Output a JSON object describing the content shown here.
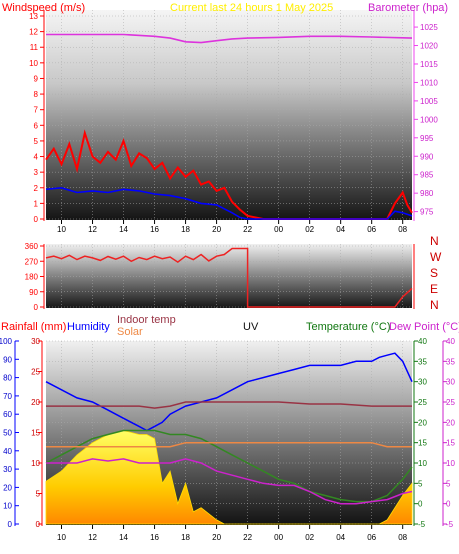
{
  "chart_data": [
    {
      "type": "line",
      "title": "Current last 24 hours 1 May 2025",
      "left_axis_label": "Windspeed (m/s)",
      "right_axis_label": "Barometer (hpa)",
      "x_ticks": [
        "10",
        "12",
        "14",
        "16",
        "18",
        "20",
        "22",
        "00",
        "02",
        "04",
        "06",
        "08"
      ],
      "left_ylim": [
        0,
        13
      ],
      "left_ticks": [
        "0",
        "1",
        "2",
        "3",
        "4",
        "5",
        "6",
        "7",
        "8",
        "9",
        "10",
        "11",
        "12",
        "13"
      ],
      "right_ylim": [
        973,
        1028
      ],
      "right_ticks": [
        "975",
        "980",
        "985",
        "990",
        "995",
        "1000",
        "1005",
        "1010",
        "1015",
        "1020",
        "1025"
      ],
      "series": [
        {
          "color": "#ff0000",
          "axis": "left",
          "x": [
            9.0,
            9.5,
            10.0,
            10.5,
            11.0,
            11.5,
            12.0,
            12.5,
            13.0,
            13.5,
            14.0,
            14.5,
            15.0,
            15.5,
            16.0,
            16.5,
            17.0,
            17.5,
            18.0,
            18.5,
            19.0,
            19.5,
            20.0,
            20.5,
            21.0,
            21.5,
            22.0,
            23.0,
            24.0,
            26.0,
            28.0,
            30.0,
            31.0,
            31.5,
            32.0,
            32.3,
            32.6
          ],
          "values": [
            3.8,
            4.5,
            3.5,
            4.8,
            3.2,
            5.5,
            4.0,
            3.6,
            4.3,
            3.8,
            5.0,
            3.4,
            4.2,
            3.9,
            3.2,
            3.6,
            2.6,
            3.3,
            2.7,
            3.1,
            2.2,
            2.4,
            1.8,
            2.0,
            1.1,
            0.6,
            0.2,
            0.0,
            0.0,
            0.0,
            0.0,
            0.0,
            0.0,
            1.0,
            1.7,
            0.9,
            0.4
          ]
        },
        {
          "color": "#0000ff",
          "axis": "left",
          "x": [
            9.0,
            10.0,
            11.0,
            12.0,
            13.0,
            14.0,
            15.0,
            16.0,
            17.0,
            18.0,
            19.0,
            20.0,
            21.0,
            21.5,
            22.0,
            24.0,
            26.0,
            28.0,
            30.0,
            31.0,
            31.5,
            32.0,
            32.6
          ],
          "values": [
            1.9,
            2.0,
            1.7,
            1.8,
            1.7,
            1.9,
            1.8,
            1.6,
            1.5,
            1.3,
            1.0,
            0.9,
            0.4,
            0.1,
            0.0,
            0.0,
            0.0,
            0.0,
            0.0,
            0.0,
            0.5,
            0.4,
            0.2
          ]
        },
        {
          "color": "#dd33dd",
          "axis": "right",
          "x": [
            9.0,
            10.0,
            12.0,
            14.0,
            16.0,
            17.0,
            18.0,
            19.0,
            20.0,
            21.0,
            22.0,
            24.0,
            26.0,
            28.0,
            30.0,
            32.0,
            32.6
          ],
          "values": [
            1023,
            1023,
            1023,
            1023,
            1022.5,
            1022,
            1021,
            1020.8,
            1021.3,
            1021.8,
            1022,
            1022.2,
            1022.5,
            1022.5,
            1022.3,
            1022.1,
            1022
          ]
        }
      ]
    },
    {
      "type": "line",
      "left_ylim": [
        0,
        360
      ],
      "left_ticks": [
        "0",
        "90",
        "180",
        "270",
        "360"
      ],
      "right_ticks": [
        "N",
        "E",
        "S",
        "W",
        "N"
      ],
      "series": [
        {
          "color": "#ee2222",
          "axis": "left",
          "x": [
            9.0,
            9.5,
            10.0,
            10.5,
            11.0,
            11.5,
            12.0,
            12.5,
            13.0,
            13.5,
            14.0,
            14.5,
            15.0,
            15.5,
            16.0,
            16.5,
            17.0,
            17.5,
            18.0,
            18.5,
            19.0,
            19.5,
            20.0,
            20.5,
            21.0,
            21.5,
            22.0,
            22.0,
            24.0,
            26.0,
            28.0,
            30.0,
            31.5,
            32.0,
            32.6
          ],
          "values": [
            290,
            300,
            285,
            305,
            280,
            300,
            290,
            275,
            298,
            282,
            300,
            270,
            292,
            280,
            300,
            285,
            295,
            265,
            300,
            280,
            310,
            272,
            300,
            310,
            345,
            345,
            345,
            0,
            0,
            0,
            0,
            0,
            0,
            60,
            110
          ]
        }
      ]
    },
    {
      "type": "area",
      "axis_titles": [
        "Rainfall (mm)",
        "Humidity",
        "Indoor temp",
        "Solar",
        "UV",
        "Temperature (°C)",
        "Dew Point (°C)"
      ],
      "x_ticks": [
        "10",
        "12",
        "14",
        "16",
        "18",
        "20",
        "22",
        "00",
        "02",
        "04",
        "06",
        "08"
      ],
      "rainfall_ticks": [
        "0",
        "10",
        "20",
        "30",
        "40",
        "50",
        "60",
        "70",
        "80",
        "90",
        "100"
      ],
      "humidity_ticks": [
        "0",
        "5",
        "10",
        "15",
        "20",
        "25",
        "30"
      ],
      "temperature_ticks": [
        "-5",
        "0",
        "5",
        "10",
        "15",
        "20",
        "25",
        "30",
        "35",
        "40"
      ],
      "temperature_ylim": [
        -5,
        40
      ],
      "series": [
        {
          "name": "Solar",
          "color": "#ffcc00",
          "axis": "temperature",
          "x": [
            9.0,
            10.0,
            11.0,
            12.0,
            13.0,
            14.0,
            15.0,
            15.5,
            16.0,
            16.5,
            17.0,
            17.5,
            18.0,
            18.5,
            19.0,
            20.0,
            20.5,
            21.0,
            30.0,
            30.5,
            31.0,
            31.5,
            32.0,
            32.6
          ],
          "values": [
            5.5,
            8,
            12,
            15,
            17,
            18,
            17,
            17,
            16,
            5,
            8,
            0,
            5,
            -2,
            -1,
            -4,
            -5,
            -5,
            -5,
            -5,
            -4,
            -1,
            2,
            5
          ]
        },
        {
          "color": "#0000ff",
          "axis": "temperature",
          "x": [
            9.0,
            10.0,
            11.0,
            12.0,
            13.0,
            14.0,
            15.0,
            15.5,
            16.0,
            16.5,
            17.0,
            17.5,
            18.0,
            19.0,
            20.0,
            21.0,
            22.0,
            23.0,
            24.0,
            25.0,
            26.0,
            27.0,
            28.0,
            29.0,
            30.0,
            30.5,
            31.0,
            31.5,
            32.0,
            32.6
          ],
          "values": [
            30,
            28,
            26,
            25,
            23,
            21,
            19,
            18,
            19,
            20,
            22,
            23,
            24,
            25,
            26,
            28,
            30,
            31,
            32,
            33,
            34,
            34,
            34,
            35,
            35,
            36,
            36.5,
            37,
            35,
            30
          ]
        },
        {
          "color": "#338822",
          "axis": "temperature",
          "x": [
            9.0,
            10.0,
            11.0,
            12.0,
            13.0,
            14.0,
            15.0,
            16.0,
            17.0,
            18.0,
            19.0,
            20.0,
            21.0,
            22.0,
            23.0,
            24.0,
            25.0,
            26.0,
            27.0,
            28.0,
            29.0,
            30.0,
            31.0,
            32.0,
            32.6
          ],
          "values": [
            10,
            12,
            14,
            16,
            17,
            18,
            18,
            18,
            17,
            17,
            16,
            14,
            12,
            10,
            8,
            6,
            5,
            3,
            2,
            1,
            0.5,
            0.5,
            2,
            6,
            9
          ]
        },
        {
          "color": "#cc22cc",
          "axis": "temperature",
          "x": [
            9.0,
            10.0,
            11.0,
            12.0,
            13.0,
            14.0,
            15.0,
            16.0,
            17.0,
            18.0,
            19.0,
            20.0,
            21.0,
            22.0,
            23.0,
            24.0,
            25.0,
            26.0,
            27.0,
            28.0,
            29.0,
            30.0,
            31.0,
            32.0,
            32.6
          ],
          "values": [
            10,
            10,
            10,
            11,
            10.5,
            11,
            10,
            10,
            10,
            11,
            10,
            8,
            7,
            6,
            5,
            4.5,
            4.5,
            3,
            1,
            0,
            0,
            0.5,
            1,
            2.5,
            3
          ]
        },
        {
          "color": "#993344",
          "axis": "temperature",
          "x": [
            9.0,
            12.0,
            15.0,
            16.0,
            17.0,
            18.0,
            19.0,
            20.0,
            22.0,
            24.0,
            26.0,
            28.0,
            30.0,
            32.6
          ],
          "values": [
            24,
            24,
            24,
            23.5,
            24,
            25,
            25,
            25,
            25,
            25,
            24.5,
            24.5,
            24,
            24
          ]
        },
        {
          "color": "#ee8844",
          "axis": "temperature",
          "x": [
            9.0,
            10.0,
            12.0,
            14.0,
            15.0,
            16.0,
            17.0,
            18.0,
            20.0,
            22.0,
            24.0,
            26.0,
            28.0,
            30.0,
            31.0,
            32.0,
            32.6
          ],
          "values": [
            14,
            14,
            14,
            14,
            14,
            14,
            14,
            15,
            15,
            15,
            15,
            15,
            15,
            15,
            14,
            14,
            14
          ]
        }
      ]
    }
  ]
}
